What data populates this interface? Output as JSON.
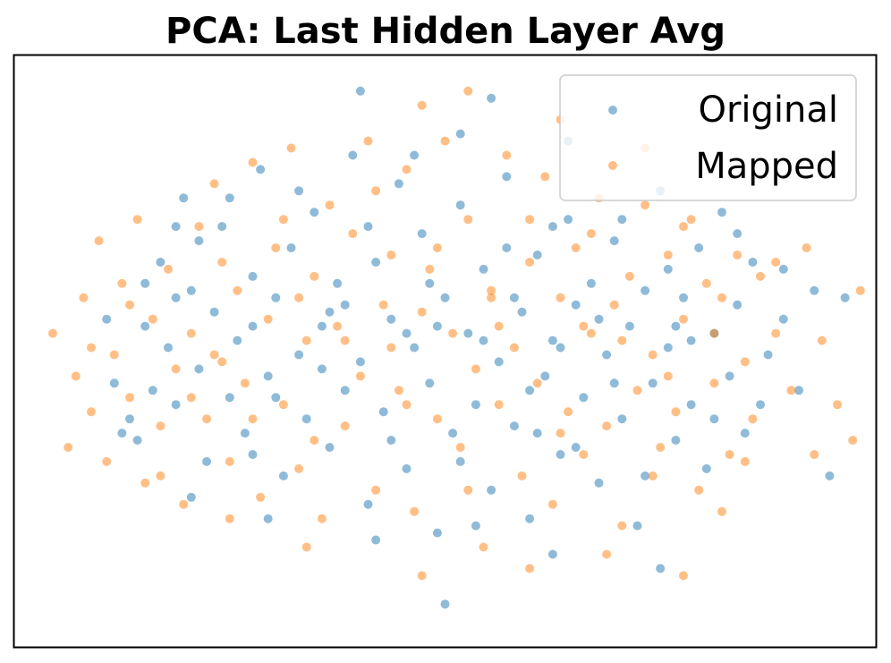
{
  "chart_data": {
    "type": "scatter",
    "title": "PCA: Last Hidden Layer Avg",
    "xlabel": "",
    "ylabel": "",
    "xlim": [
      -5.6,
      5.6
    ],
    "ylim": [
      -4.0,
      4.3
    ],
    "grid": false,
    "axis_ticks": false,
    "legend": {
      "position": "top-right"
    },
    "series": [
      {
        "name": "Original",
        "color": "#1f77b4",
        "opacity": 0.5,
        "points": [
          [
            -4.4,
            0.6
          ],
          [
            -4.3,
            -0.3
          ],
          [
            -4.1,
            -0.8
          ],
          [
            -4.0,
            -1.1
          ],
          [
            -3.9,
            0.5
          ],
          [
            -3.8,
            -0.4
          ],
          [
            -3.7,
            1.4
          ],
          [
            -3.6,
            0.2
          ],
          [
            -3.5,
            -0.6
          ],
          [
            -3.4,
            2.3
          ],
          [
            -3.3,
            1.0
          ],
          [
            -3.2,
            -0.1
          ],
          [
            -3.1,
            -1.4
          ],
          [
            -3.0,
            0.7
          ],
          [
            -2.9,
            1.9
          ],
          [
            -2.8,
            -0.5
          ],
          [
            -2.7,
            0.3
          ],
          [
            -2.6,
            -1.0
          ],
          [
            -2.5,
            1.2
          ],
          [
            -2.4,
            2.7
          ],
          [
            -2.3,
            -0.2
          ],
          [
            -2.2,
            0.9
          ],
          [
            -2.1,
            -1.6
          ],
          [
            -2.0,
            1.6
          ],
          [
            -1.9,
            0.1
          ],
          [
            -1.8,
            -0.8
          ],
          [
            -1.7,
            2.1
          ],
          [
            -1.6,
            0.5
          ],
          [
            -1.5,
            -1.2
          ],
          [
            -1.4,
            1.1
          ],
          [
            -1.3,
            -0.4
          ],
          [
            -1.2,
            2.9
          ],
          [
            -1.1,
            0.0
          ],
          [
            -1.0,
            -2.0
          ],
          [
            -0.9,
            1.4
          ],
          [
            -0.8,
            -0.7
          ],
          [
            -0.7,
            0.6
          ],
          [
            -0.6,
            2.5
          ],
          [
            -0.5,
            -1.5
          ],
          [
            -0.4,
            0.2
          ],
          [
            -0.3,
            1.8
          ],
          [
            -0.2,
            -0.3
          ],
          [
            -0.1,
            -2.4
          ],
          [
            0.0,
            0.9
          ],
          [
            0.1,
            -1.0
          ],
          [
            0.2,
            2.2
          ],
          [
            0.3,
            0.4
          ],
          [
            0.4,
            -0.6
          ],
          [
            0.5,
            1.3
          ],
          [
            0.6,
            -1.8
          ],
          [
            0.7,
            0.0
          ],
          [
            0.8,
            2.6
          ],
          [
            0.9,
            -0.9
          ],
          [
            1.0,
            0.7
          ],
          [
            1.1,
            -2.2
          ],
          [
            1.2,
            1.5
          ],
          [
            1.3,
            -0.2
          ],
          [
            1.4,
            0.3
          ],
          [
            1.5,
            -1.3
          ],
          [
            1.6,
            2.0
          ],
          [
            1.7,
            0.8
          ],
          [
            1.8,
            -0.5
          ],
          [
            1.9,
            1.1
          ],
          [
            2.0,
            -1.7
          ],
          [
            2.1,
            0.1
          ],
          [
            2.2,
            1.7
          ],
          [
            2.3,
            -0.8
          ],
          [
            2.4,
            0.5
          ],
          [
            2.5,
            -2.3
          ],
          [
            2.6,
            1.0
          ],
          [
            2.7,
            -0.3
          ],
          [
            2.8,
            2.4
          ],
          [
            2.9,
            0.2
          ],
          [
            3.0,
            -1.1
          ],
          [
            3.1,
            0.9
          ],
          [
            3.2,
            -0.6
          ],
          [
            3.3,
            1.6
          ],
          [
            3.4,
            -1.5
          ],
          [
            3.5,
            0.4
          ],
          [
            3.6,
            2.1
          ],
          [
            3.7,
            -0.2
          ],
          [
            3.8,
            0.8
          ],
          [
            3.9,
            -1.0
          ],
          [
            4.0,
            1.4
          ],
          [
            4.2,
            0.1
          ],
          [
            4.4,
            0.6
          ],
          [
            4.6,
            -0.4
          ],
          [
            4.8,
            1.0
          ],
          [
            5.2,
            0.9
          ],
          [
            5.0,
            -1.6
          ],
          [
            -4.2,
            -1.0
          ],
          [
            -3.9,
            1.1
          ],
          [
            -3.5,
            0.9
          ],
          [
            -3.2,
            1.7
          ],
          [
            -2.8,
            2.3
          ],
          [
            -2.5,
            -1.3
          ],
          [
            -2.2,
            -0.5
          ],
          [
            -1.9,
            2.4
          ],
          [
            -1.6,
            -0.1
          ],
          [
            -1.3,
            0.8
          ],
          [
            -1.0,
            1.9
          ],
          [
            -0.7,
            -1.1
          ],
          [
            -0.4,
            2.9
          ],
          [
            -0.1,
            0.5
          ],
          [
            0.2,
            -1.4
          ],
          [
            0.5,
            0.3
          ],
          [
            0.8,
            1.6
          ],
          [
            1.1,
            -0.4
          ],
          [
            1.4,
            1.9
          ],
          [
            1.7,
            -1.2
          ],
          [
            2.0,
            0.6
          ],
          [
            2.3,
            2.0
          ],
          [
            2.6,
            -1.6
          ],
          [
            2.9,
            1.3
          ],
          [
            3.2,
            0.3
          ],
          [
            3.5,
            -0.8
          ],
          [
            3.8,
            1.8
          ],
          [
            4.1,
            -0.6
          ],
          [
            4.4,
            1.3
          ],
          [
            1.5,
            0.2
          ],
          [
            0.9,
            0.9
          ],
          [
            -0.5,
            0.4
          ],
          [
            -1.5,
            0.7
          ],
          [
            -2.5,
            0.5
          ],
          [
            -3.5,
            1.9
          ],
          [
            2.2,
            -0.3
          ],
          [
            3.0,
            0.5
          ],
          [
            -0.2,
            1.1
          ],
          [
            1.2,
            -1.0
          ],
          [
            0.4,
            -2.3
          ],
          [
            0.0,
            -3.4
          ],
          [
            1.4,
            -2.7
          ],
          [
            2.8,
            -2.9
          ],
          [
            -0.9,
            -2.5
          ],
          [
            -2.3,
            -2.2
          ],
          [
            -3.3,
            -1.9
          ],
          [
            0.6,
            3.7
          ],
          [
            -1.1,
            3.8
          ],
          [
            0.2,
            3.2
          ],
          [
            1.6,
            3.1
          ]
        ]
      },
      {
        "name": "Mapped",
        "color": "#ff7f0e",
        "opacity": 0.5,
        "points": [
          [
            -5.1,
            0.4
          ],
          [
            -4.9,
            -1.2
          ],
          [
            -4.8,
            -0.2
          ],
          [
            -4.7,
            0.9
          ],
          [
            -4.6,
            -0.7
          ],
          [
            -4.5,
            1.7
          ],
          [
            -4.4,
            -1.4
          ],
          [
            -4.3,
            0.1
          ],
          [
            -4.2,
            1.1
          ],
          [
            -4.1,
            -0.5
          ],
          [
            -4.0,
            2.0
          ],
          [
            -3.9,
            -1.7
          ],
          [
            -3.8,
            0.6
          ],
          [
            -3.7,
            -0.9
          ],
          [
            -3.6,
            1.3
          ],
          [
            -3.5,
            -0.1
          ],
          [
            -3.4,
            -2.0
          ],
          [
            -3.3,
            0.4
          ],
          [
            -3.2,
            1.9
          ],
          [
            -3.1,
            -0.8
          ],
          [
            -3.0,
            2.5
          ],
          [
            -2.9,
            0.0
          ],
          [
            -2.8,
            -1.4
          ],
          [
            -2.7,
            1.0
          ],
          [
            -2.6,
            -0.3
          ],
          [
            -2.5,
            2.8
          ],
          [
            -2.4,
            -1.9
          ],
          [
            -2.3,
            0.6
          ],
          [
            -2.2,
            1.6
          ],
          [
            -2.1,
            -0.6
          ],
          [
            -2.0,
            3.0
          ],
          [
            -1.9,
            -1.5
          ],
          [
            -1.8,
            0.3
          ],
          [
            -1.7,
            1.2
          ],
          [
            -1.6,
            -2.2
          ],
          [
            -1.5,
            2.2
          ],
          [
            -1.4,
            0.5
          ],
          [
            -1.3,
            -0.9
          ],
          [
            -1.2,
            1.8
          ],
          [
            -1.1,
            -0.2
          ],
          [
            -1.0,
            3.1
          ],
          [
            -0.9,
            -1.8
          ],
          [
            -0.8,
            0.8
          ],
          [
            -0.7,
            1.5
          ],
          [
            -0.6,
            -0.4
          ],
          [
            -0.5,
            2.7
          ],
          [
            -0.4,
            -2.1
          ],
          [
            -0.3,
            0.7
          ],
          [
            -0.2,
            1.3
          ],
          [
            -0.1,
            -0.8
          ],
          [
            0.0,
            3.1
          ],
          [
            0.1,
            0.4
          ],
          [
            0.2,
            -1.2
          ],
          [
            0.3,
            2.0
          ],
          [
            0.4,
            -0.1
          ],
          [
            0.5,
            -2.6
          ],
          [
            0.6,
            1.0
          ],
          [
            0.7,
            -0.6
          ],
          [
            0.8,
            2.9
          ],
          [
            0.9,
            0.2
          ],
          [
            1.0,
            -1.6
          ],
          [
            1.1,
            1.4
          ],
          [
            1.2,
            -0.3
          ],
          [
            1.3,
            2.6
          ],
          [
            1.4,
            -2.0
          ],
          [
            1.5,
            0.9
          ],
          [
            1.6,
            -0.7
          ],
          [
            1.7,
            1.6
          ],
          [
            1.8,
            -1.3
          ],
          [
            1.9,
            0.4
          ],
          [
            2.0,
            2.3
          ],
          [
            2.1,
            -0.9
          ],
          [
            2.2,
            0.8
          ],
          [
            2.3,
            -2.3
          ],
          [
            2.4,
            1.2
          ],
          [
            2.5,
            -0.4
          ],
          [
            2.6,
            2.2
          ],
          [
            2.7,
            0.1
          ],
          [
            2.8,
            -1.2
          ],
          [
            2.9,
            1.5
          ],
          [
            3.0,
            -0.7
          ],
          [
            3.1,
            0.6
          ],
          [
            3.2,
            2.0
          ],
          [
            3.3,
            -1.8
          ],
          [
            3.4,
            1.1
          ],
          [
            3.5,
            -0.3
          ],
          [
            3.6,
            0.9
          ],
          [
            3.7,
            -1.3
          ],
          [
            3.8,
            1.5
          ],
          [
            3.9,
            0.0
          ],
          [
            4.0,
            -0.8
          ],
          [
            4.1,
            1.2
          ],
          [
            4.3,
            0.4
          ],
          [
            4.5,
            -0.4
          ],
          [
            4.7,
            1.6
          ],
          [
            4.9,
            0.3
          ],
          [
            5.1,
            -0.6
          ],
          [
            5.4,
            1.0
          ],
          [
            5.3,
            -1.1
          ],
          [
            4.8,
            -1.3
          ],
          [
            -4.6,
            0.2
          ],
          [
            -4.1,
            0.8
          ],
          [
            -3.7,
            -1.6
          ],
          [
            -3.3,
            -0.5
          ],
          [
            -2.9,
            1.4
          ],
          [
            -2.5,
            -0.8
          ],
          [
            -2.1,
            2.0
          ],
          [
            -1.7,
            -1.1
          ],
          [
            -1.3,
            0.3
          ],
          [
            -0.9,
            2.4
          ],
          [
            -0.5,
            -0.6
          ],
          [
            -0.1,
            1.6
          ],
          [
            0.3,
            -1.8
          ],
          [
            0.7,
            0.5
          ],
          [
            1.1,
            2.0
          ],
          [
            1.5,
            -1.0
          ],
          [
            1.9,
            1.8
          ],
          [
            2.3,
            0.3
          ],
          [
            2.7,
            -1.6
          ],
          [
            3.1,
            1.9
          ],
          [
            3.5,
            0.4
          ],
          [
            3.9,
            -1.4
          ],
          [
            4.3,
            1.4
          ],
          [
            -1.9,
            0.9
          ],
          [
            -0.7,
            0.2
          ],
          [
            0.6,
            0.9
          ],
          [
            1.8,
            0.5
          ],
          [
            2.9,
            -0.2
          ],
          [
            -3.0,
            0.1
          ],
          [
            3.6,
            -2.1
          ],
          [
            -0.3,
            -3.0
          ],
          [
            1.1,
            -2.9
          ],
          [
            2.1,
            -2.7
          ],
          [
            3.1,
            -3.0
          ],
          [
            -1.8,
            -2.6
          ],
          [
            -2.8,
            -2.2
          ],
          [
            0.3,
            3.8
          ],
          [
            1.5,
            3.4
          ],
          [
            2.6,
            3.0
          ],
          [
            -0.3,
            3.6
          ]
        ]
      }
    ]
  }
}
